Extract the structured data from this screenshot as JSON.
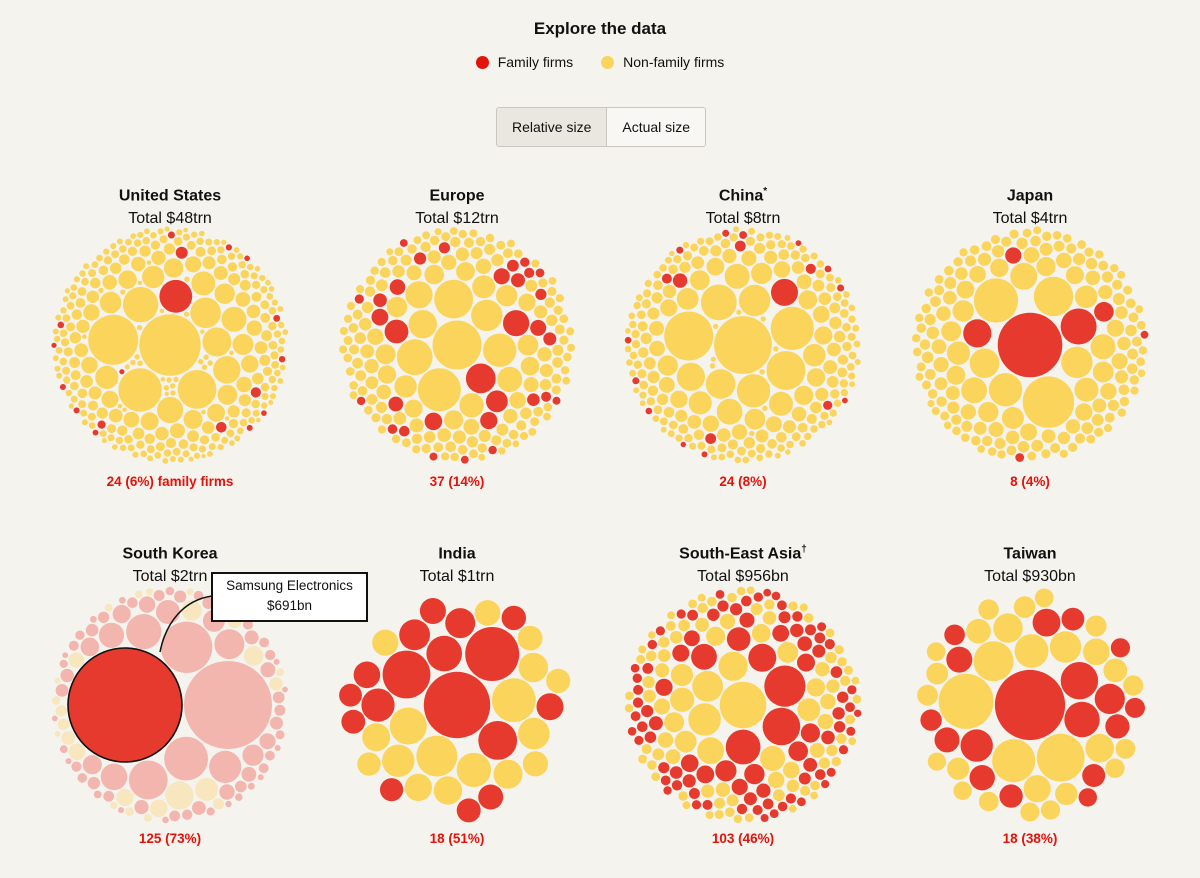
{
  "header": {
    "title": "Explore the data"
  },
  "legend": [
    {
      "label": "Family firms",
      "color": "#e63a2e"
    },
    {
      "label": "Non-family firms",
      "color": "#fbd45c"
    }
  ],
  "toggle": {
    "options": [
      "Relative size",
      "Actual size"
    ],
    "selected": "Relative size"
  },
  "colors": {
    "family": "#e63a2e",
    "non_family": "#fbd45c",
    "family_faded": "#f2b6ae",
    "non_family_faded": "#f8e7be",
    "highlight_stroke": "#111111",
    "footer_text": "#e3120b",
    "background": "#f5f3ee"
  },
  "tooltip": {
    "name": "Samsung Electronics",
    "value": "$691bn",
    "panel": "South Korea"
  },
  "chart_data": {
    "type": "packed-bubble",
    "title": "Explore the data",
    "legend": [
      "Family firms",
      "Non-family firms"
    ],
    "mode": "Relative size",
    "panels": [
      {
        "name": "United States",
        "mark": "",
        "total": "Total $48trn",
        "family_count": 24,
        "family_pct": 6,
        "footer": "24 (6%) family firms"
      },
      {
        "name": "Europe",
        "mark": "",
        "total": "Total $12trn",
        "family_count": 37,
        "family_pct": 14,
        "footer": "37 (14%)"
      },
      {
        "name": "China",
        "mark": "*",
        "total": "Total $8trn",
        "family_count": 24,
        "family_pct": 8,
        "footer": "24 (8%)"
      },
      {
        "name": "Japan",
        "mark": "",
        "total": "Total $4trn",
        "family_count": 8,
        "family_pct": 4,
        "footer": "8 (4%)"
      },
      {
        "name": "South Korea",
        "mark": "",
        "total": "Total $2trn",
        "family_count": 125,
        "family_pct": 73,
        "footer": "125 (73%)"
      },
      {
        "name": "India",
        "mark": "",
        "total": "Total $1trn",
        "family_count": 18,
        "family_pct": 51,
        "footer": "18 (51%)"
      },
      {
        "name": "South-East Asia",
        "mark": "†",
        "total": "Total $956bn",
        "family_count": 103,
        "family_pct": 46,
        "footer": "103 (46%)"
      },
      {
        "name": "Taiwan",
        "mark": "",
        "total": "Total $930bn",
        "family_count": 18,
        "family_pct": 38,
        "footer": "18 (38%)"
      }
    ]
  }
}
